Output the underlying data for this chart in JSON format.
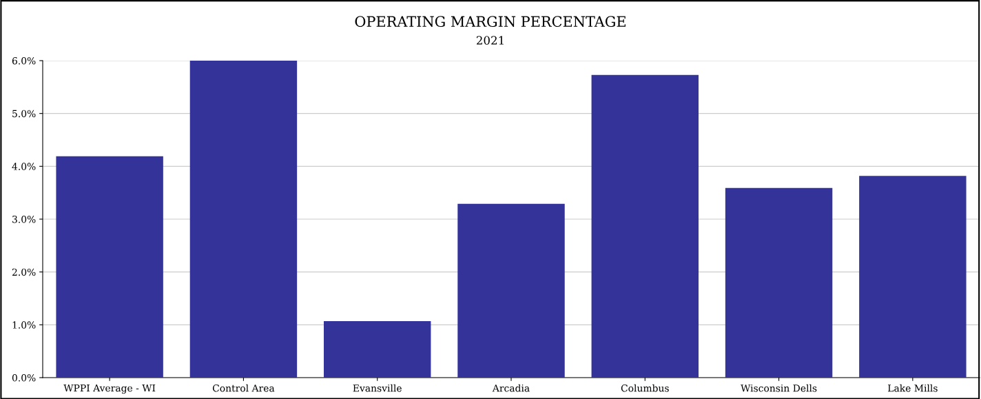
{
  "chart_data": {
    "type": "bar",
    "title": "OPERATING MARGIN PERCENTAGE",
    "subtitle": "2021",
    "categories": [
      "WPPI Average - WI",
      "Control Area",
      "Evansville",
      "Arcadia",
      "Columbus",
      "Wisconsin Dells",
      "Lake Mills"
    ],
    "values": [
      4.19,
      6.0,
      1.07,
      3.29,
      5.73,
      3.59,
      3.82
    ],
    "color": "#333399",
    "ylim": [
      0,
      6.0
    ],
    "yticks": [
      {
        "value": 0,
        "label": "0.0%"
      },
      {
        "value": 1,
        "label": "1.0%"
      },
      {
        "value": 2,
        "label": "2.0%"
      },
      {
        "value": 3,
        "label": "3.0%"
      },
      {
        "value": 4,
        "label": "4.0%"
      },
      {
        "value": 5,
        "label": "5.0%"
      },
      {
        "value": 6,
        "label": "6.0%"
      }
    ],
    "grid": "y",
    "legend": false
  }
}
